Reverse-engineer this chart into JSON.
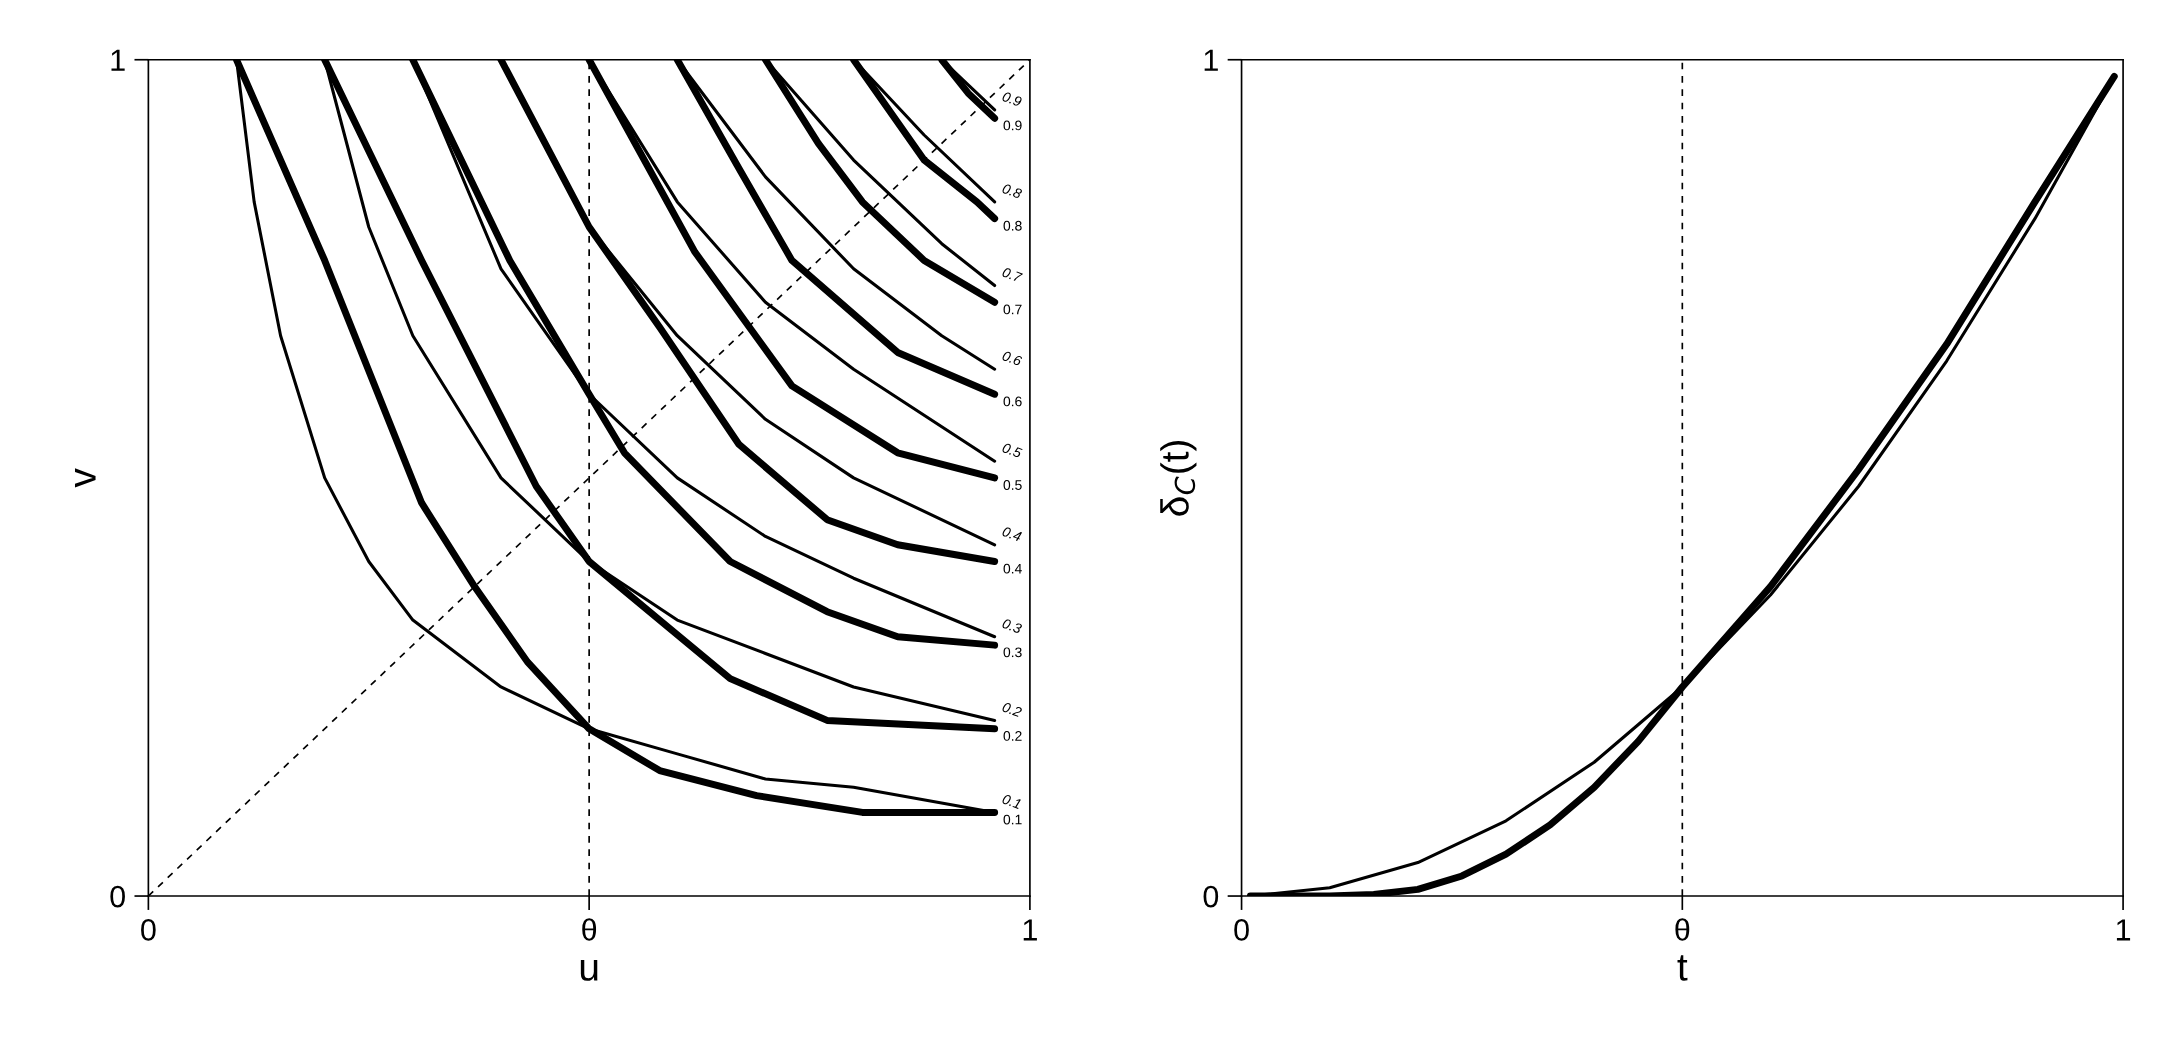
{
  "chart_data": [
    {
      "type": "line",
      "xlabel": "u",
      "ylabel": "v",
      "xlim": [
        0,
        1
      ],
      "ylim": [
        0,
        1
      ],
      "xticks": [
        0,
        {
          "value": 0.5,
          "label": "θ"
        },
        1
      ],
      "yticks": [
        0,
        1
      ],
      "grid": false,
      "legend": false,
      "ref_lines": [
        {
          "axis": "x",
          "value": 0.5,
          "color": "#000000",
          "line_style": "dashed"
        }
      ],
      "series": [
        {
          "name": "0.1",
          "color": "#000000",
          "x": [
            0.1,
            0.12,
            0.15,
            0.2,
            0.25,
            0.3,
            0.4,
            0.5,
            0.6,
            0.7,
            0.8,
            0.96
          ],
          "values": [
            1,
            0.83,
            0.67,
            0.5,
            0.4,
            0.33,
            0.25,
            0.2,
            0.17,
            0.14,
            0.13,
            0.1
          ]
        },
        {
          "name": "0.1",
          "color": "#000000",
          "x": [
            0.1,
            0.2,
            0.31,
            0.37,
            0.43,
            0.5,
            0.58,
            0.69,
            0.81,
            0.96
          ],
          "values": [
            1,
            0.76,
            0.47,
            0.37,
            0.28,
            0.2,
            0.15,
            0.12,
            0.1,
            0.1
          ]
        },
        {
          "name": "0.2",
          "color": "#000000",
          "x": [
            0.2,
            0.25,
            0.3,
            0.4,
            0.5,
            0.6,
            0.7,
            0.8,
            0.96
          ],
          "values": [
            1,
            0.8,
            0.67,
            0.5,
            0.4,
            0.33,
            0.29,
            0.25,
            0.21
          ]
        },
        {
          "name": "0.2",
          "color": "#000000",
          "x": [
            0.2,
            0.31,
            0.44,
            0.5,
            0.58,
            0.66,
            0.77,
            0.96
          ],
          "values": [
            1,
            0.76,
            0.49,
            0.4,
            0.33,
            0.26,
            0.21,
            0.2
          ]
        },
        {
          "name": "0.3",
          "color": "#000000",
          "x": [
            0.3,
            0.4,
            0.5,
            0.6,
            0.7,
            0.8,
            0.96
          ],
          "values": [
            1,
            0.75,
            0.6,
            0.5,
            0.43,
            0.38,
            0.31
          ]
        },
        {
          "name": "0.3",
          "color": "#000000",
          "x": [
            0.3,
            0.41,
            0.5,
            0.54,
            0.66,
            0.77,
            0.85,
            0.96
          ],
          "values": [
            1,
            0.76,
            0.6,
            0.53,
            0.4,
            0.34,
            0.31,
            0.3
          ]
        },
        {
          "name": "0.4",
          "color": "#000000",
          "x": [
            0.4,
            0.5,
            0.6,
            0.7,
            0.8,
            0.96
          ],
          "values": [
            1,
            0.8,
            0.67,
            0.57,
            0.5,
            0.42
          ]
        },
        {
          "name": "0.4",
          "color": "#000000",
          "x": [
            0.4,
            0.5,
            0.58,
            0.67,
            0.77,
            0.85,
            0.96
          ],
          "values": [
            1,
            0.8,
            0.68,
            0.54,
            0.45,
            0.42,
            0.4
          ]
        },
        {
          "name": "0.5",
          "color": "#000000",
          "x": [
            0.5,
            0.6,
            0.7,
            0.8,
            0.96
          ],
          "values": [
            1,
            0.83,
            0.71,
            0.63,
            0.52
          ]
        },
        {
          "name": "0.5",
          "color": "#000000",
          "x": [
            0.5,
            0.62,
            0.73,
            0.85,
            0.96
          ],
          "values": [
            1,
            0.77,
            0.61,
            0.53,
            0.5
          ]
        },
        {
          "name": "0.6",
          "color": "#000000",
          "x": [
            0.6,
            0.7,
            0.8,
            0.9,
            0.96
          ],
          "values": [
            1,
            0.86,
            0.75,
            0.67,
            0.63
          ]
        },
        {
          "name": "0.6",
          "color": "#000000",
          "x": [
            0.6,
            0.67,
            0.73,
            0.85,
            0.96
          ],
          "values": [
            1,
            0.87,
            0.76,
            0.65,
            0.6
          ]
        },
        {
          "name": "0.7",
          "color": "#000000",
          "x": [
            0.7,
            0.8,
            0.9,
            0.96
          ],
          "values": [
            1,
            0.88,
            0.78,
            0.73
          ]
        },
        {
          "name": "0.7",
          "color": "#000000",
          "x": [
            0.7,
            0.76,
            0.81,
            0.88,
            0.96
          ],
          "values": [
            1,
            0.9,
            0.83,
            0.76,
            0.71
          ]
        },
        {
          "name": "0.8",
          "color": "#000000",
          "x": [
            0.8,
            0.88,
            0.96
          ],
          "values": [
            1,
            0.91,
            0.83
          ]
        },
        {
          "name": "0.8",
          "color": "#000000",
          "x": [
            0.8,
            0.88,
            0.94,
            0.96
          ],
          "values": [
            1,
            0.88,
            0.83,
            0.81
          ]
        },
        {
          "name": "0.9",
          "color": "#000000",
          "x": [
            0.9,
            0.93,
            0.96
          ],
          "values": [
            1,
            0.97,
            0.94
          ]
        },
        {
          "name": "0.9",
          "color": "#000000",
          "x": [
            0.9,
            0.93,
            0.96
          ],
          "values": [
            1,
            0.96,
            0.93
          ]
        },
        {
          "color": "#000000",
          "line_style": "dashed",
          "x": [
            0,
            1
          ],
          "values": [
            0,
            1
          ]
        }
      ]
    },
    {
      "type": "line",
      "xlabel": "t",
      "ylabel": "δ$_{C}$(t)",
      "xlim": [
        0,
        1
      ],
      "ylim": [
        0,
        1
      ],
      "xticks": [
        0,
        {
          "value": 0.5,
          "label": "θ"
        },
        1
      ],
      "yticks": [
        0,
        1
      ],
      "grid": false,
      "legend": false,
      "ref_lines": [
        {
          "axis": "x",
          "value": 0.5,
          "color": "#000000",
          "line_style": "dashed"
        }
      ],
      "series": [
        {
          "color": "#000000",
          "x": [
            0.01,
            0.1,
            0.2,
            0.3,
            0.4,
            0.5,
            0.6,
            0.7,
            0.8,
            0.9,
            0.99
          ],
          "values": [
            0,
            0.01,
            0.04,
            0.09,
            0.16,
            0.25,
            0.36,
            0.49,
            0.64,
            0.81,
            0.98
          ]
        },
        {
          "color": "#000000",
          "x": [
            0.01,
            0.1,
            0.15,
            0.2,
            0.25,
            0.3,
            0.35,
            0.4,
            0.45,
            0.5,
            0.6,
            0.7,
            0.8,
            0.9,
            0.99
          ],
          "values": [
            0,
            0,
            0.002,
            0.008,
            0.024,
            0.05,
            0.085,
            0.13,
            0.185,
            0.25,
            0.37,
            0.51,
            0.66,
            0.83,
            0.98
          ]
        }
      ]
    }
  ]
}
